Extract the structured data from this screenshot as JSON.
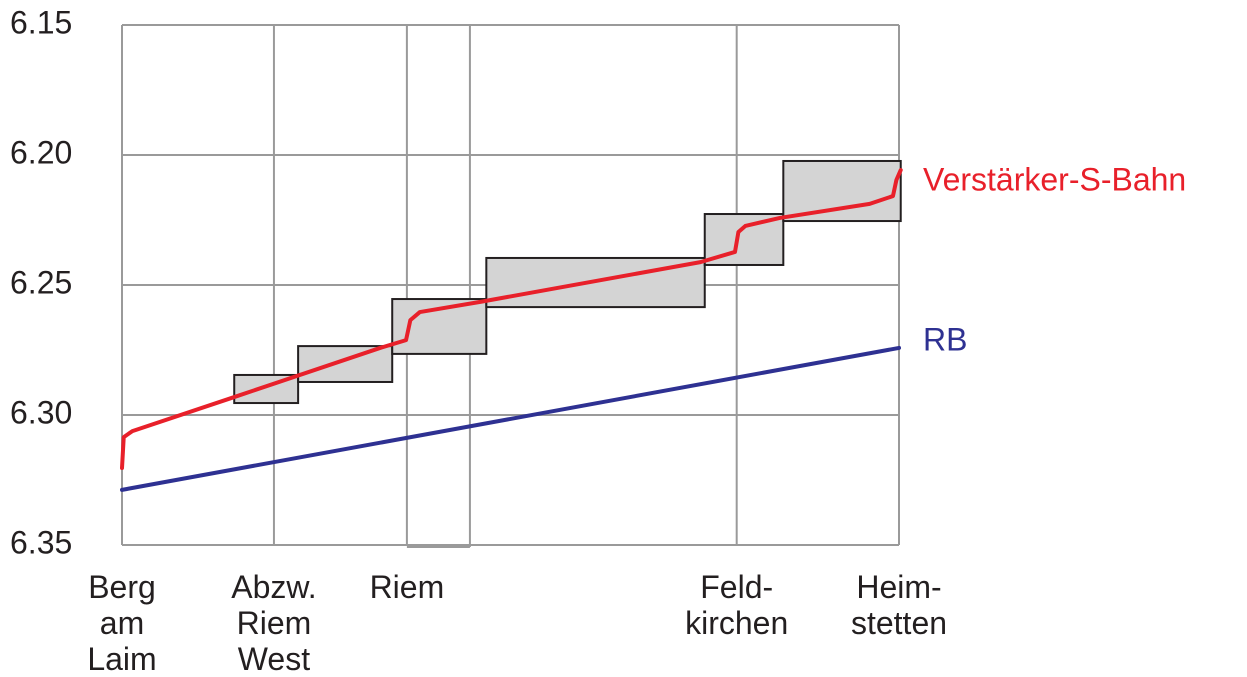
{
  "chart_data": {
    "type": "line",
    "x": [
      0,
      1.76,
      3.3,
      4.03,
      7.12,
      9.0
    ],
    "categories": [
      [
        "Berg",
        "am",
        "Laim"
      ],
      [
        "Abzw.",
        "Riem",
        "West"
      ],
      [
        "Riem"
      ],
      null,
      [
        "Feld-",
        "kirchen"
      ],
      [
        "Heim-",
        "stetten"
      ]
    ],
    "xlim": [
      0,
      9.0
    ],
    "ylim": [
      35,
      15
    ],
    "yticks": [
      {
        "value": 15,
        "label": "6.15"
      },
      {
        "value": 20,
        "label": "6.20"
      },
      {
        "value": 25,
        "label": "6.25"
      },
      {
        "value": 30,
        "label": "6.30"
      },
      {
        "value": 35,
        "label": "6.35"
      }
    ],
    "grid": true,
    "series": [
      {
        "name": "Verstärker-S-Bahn",
        "color": "#e8202a",
        "x": [
          0,
          0.02,
          0.12,
          1.3,
          2.99,
          3.29,
          3.34,
          3.45,
          4.15,
          6.7,
          7.1,
          7.14,
          7.22,
          7.62,
          8.66,
          8.93,
          8.97,
          9.02
        ],
        "values": [
          32.04,
          30.85,
          30.62,
          29.31,
          27.42,
          27.12,
          26.35,
          26.04,
          25.65,
          24.12,
          23.73,
          22.96,
          22.73,
          22.42,
          21.88,
          21.58,
          20.96,
          20.58
        ]
      },
      {
        "name": "RB",
        "color": "#2e3192",
        "x": [
          0,
          9.0
        ],
        "values": [
          32.88,
          27.42
        ]
      }
    ],
    "blocks": {
      "color": "#d4d4d4",
      "x0": [
        1.3,
        2.04,
        3.13,
        4.22,
        6.75,
        7.66
      ],
      "x1": [
        2.04,
        3.13,
        4.22,
        6.75,
        7.66,
        9.02
      ],
      "start": [
        28.46,
        27.35,
        25.54,
        23.96,
        22.27,
        20.23
      ],
      "end": [
        29.54,
        28.73,
        27.65,
        25.85,
        24.23,
        22.54
      ]
    }
  }
}
